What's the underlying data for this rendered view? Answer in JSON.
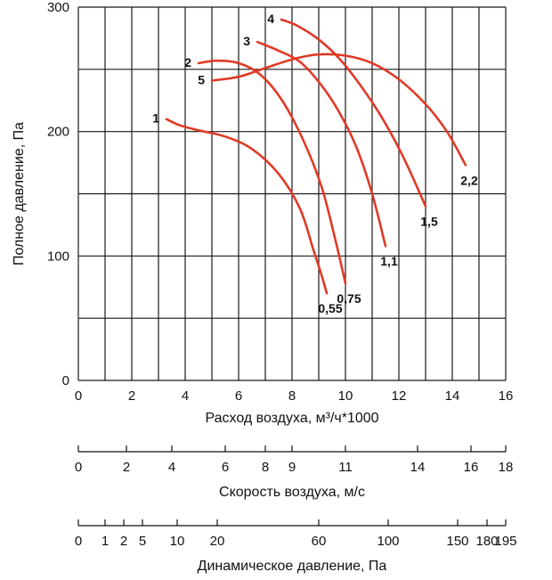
{
  "chart_data": {
    "type": "line",
    "xlabel": "Расход воздуха, м³/ч*1000",
    "ylabel": "Полное давление, Па",
    "xlim": [
      0,
      16
    ],
    "ylim": [
      0,
      300
    ],
    "x_ticks": [
      "0",
      "2",
      "4",
      "6",
      "8",
      "10",
      "12",
      "14",
      "16"
    ],
    "y_ticks": [
      "0",
      "100",
      "200",
      "300"
    ],
    "grid": true,
    "curve_color": "#e03a26",
    "series": [
      {
        "name": "1",
        "end_label": "0,55",
        "points": [
          [
            3.3,
            210
          ],
          [
            3.8,
            205
          ],
          [
            4.5,
            201
          ],
          [
            5.5,
            196
          ],
          [
            6.5,
            186
          ],
          [
            7.5,
            166
          ],
          [
            8.3,
            138
          ],
          [
            8.8,
            105
          ],
          [
            9.1,
            85
          ],
          [
            9.3,
            70
          ]
        ]
      },
      {
        "name": "2",
        "end_label": "0,75",
        "points": [
          [
            4.5,
            255
          ],
          [
            5.2,
            257
          ],
          [
            6.0,
            255
          ],
          [
            6.8,
            246
          ],
          [
            7.6,
            226
          ],
          [
            8.4,
            194
          ],
          [
            9.1,
            156
          ],
          [
            9.6,
            115
          ],
          [
            10.0,
            78
          ]
        ]
      },
      {
        "name": "3",
        "end_label": "1,1",
        "points": [
          [
            6.7,
            272
          ],
          [
            7.5,
            265
          ],
          [
            8.3,
            256
          ],
          [
            9.0,
            240
          ],
          [
            9.7,
            218
          ],
          [
            10.4,
            188
          ],
          [
            11.0,
            150
          ],
          [
            11.5,
            108
          ]
        ]
      },
      {
        "name": "4",
        "end_label": "1,5",
        "points": [
          [
            7.6,
            290
          ],
          [
            8.2,
            285
          ],
          [
            9.0,
            274
          ],
          [
            9.8,
            258
          ],
          [
            10.6,
            236
          ],
          [
            11.4,
            210
          ],
          [
            12.2,
            178
          ],
          [
            13.0,
            140
          ]
        ]
      },
      {
        "name": "5",
        "end_label": "2,2",
        "points": [
          [
            5.0,
            241
          ],
          [
            6.0,
            244
          ],
          [
            7.0,
            251
          ],
          [
            8.0,
            258
          ],
          [
            9.0,
            262
          ],
          [
            10.0,
            261
          ],
          [
            11.0,
            255
          ],
          [
            12.0,
            242
          ],
          [
            13.0,
            222
          ],
          [
            13.8,
            200
          ],
          [
            14.5,
            173
          ]
        ]
      }
    ],
    "secondary_axes": [
      {
        "title": "Скорость воздуха, м/с",
        "ticks": [
          {
            "label": "0",
            "x": 0
          },
          {
            "label": "2",
            "x": 1.8
          },
          {
            "label": "4",
            "x": 3.5
          },
          {
            "label": "6",
            "x": 5.5
          },
          {
            "label": "8",
            "x": 7.0
          },
          {
            "label": "9",
            "x": 8.0
          },
          {
            "label": "11",
            "x": 10.0
          },
          {
            "label": "14",
            "x": 12.7
          },
          {
            "label": "16",
            "x": 14.7
          },
          {
            "label": "18",
            "x": 16.0
          }
        ]
      },
      {
        "title": "Динамическое давление, Па",
        "ticks": [
          {
            "label": "0",
            "x": 0
          },
          {
            "label": "1",
            "x": 1.0
          },
          {
            "label": "2",
            "x": 1.7
          },
          {
            "label": "5",
            "x": 2.4
          },
          {
            "label": "10",
            "x": 3.7
          },
          {
            "label": "20",
            "x": 5.2
          },
          {
            "label": "60",
            "x": 9.0
          },
          {
            "label": "100",
            "x": 11.6
          },
          {
            "label": "150",
            "x": 14.2
          },
          {
            "label": "180",
            "x": 15.3
          },
          {
            "label": "195",
            "x": 16.0
          }
        ]
      }
    ]
  }
}
